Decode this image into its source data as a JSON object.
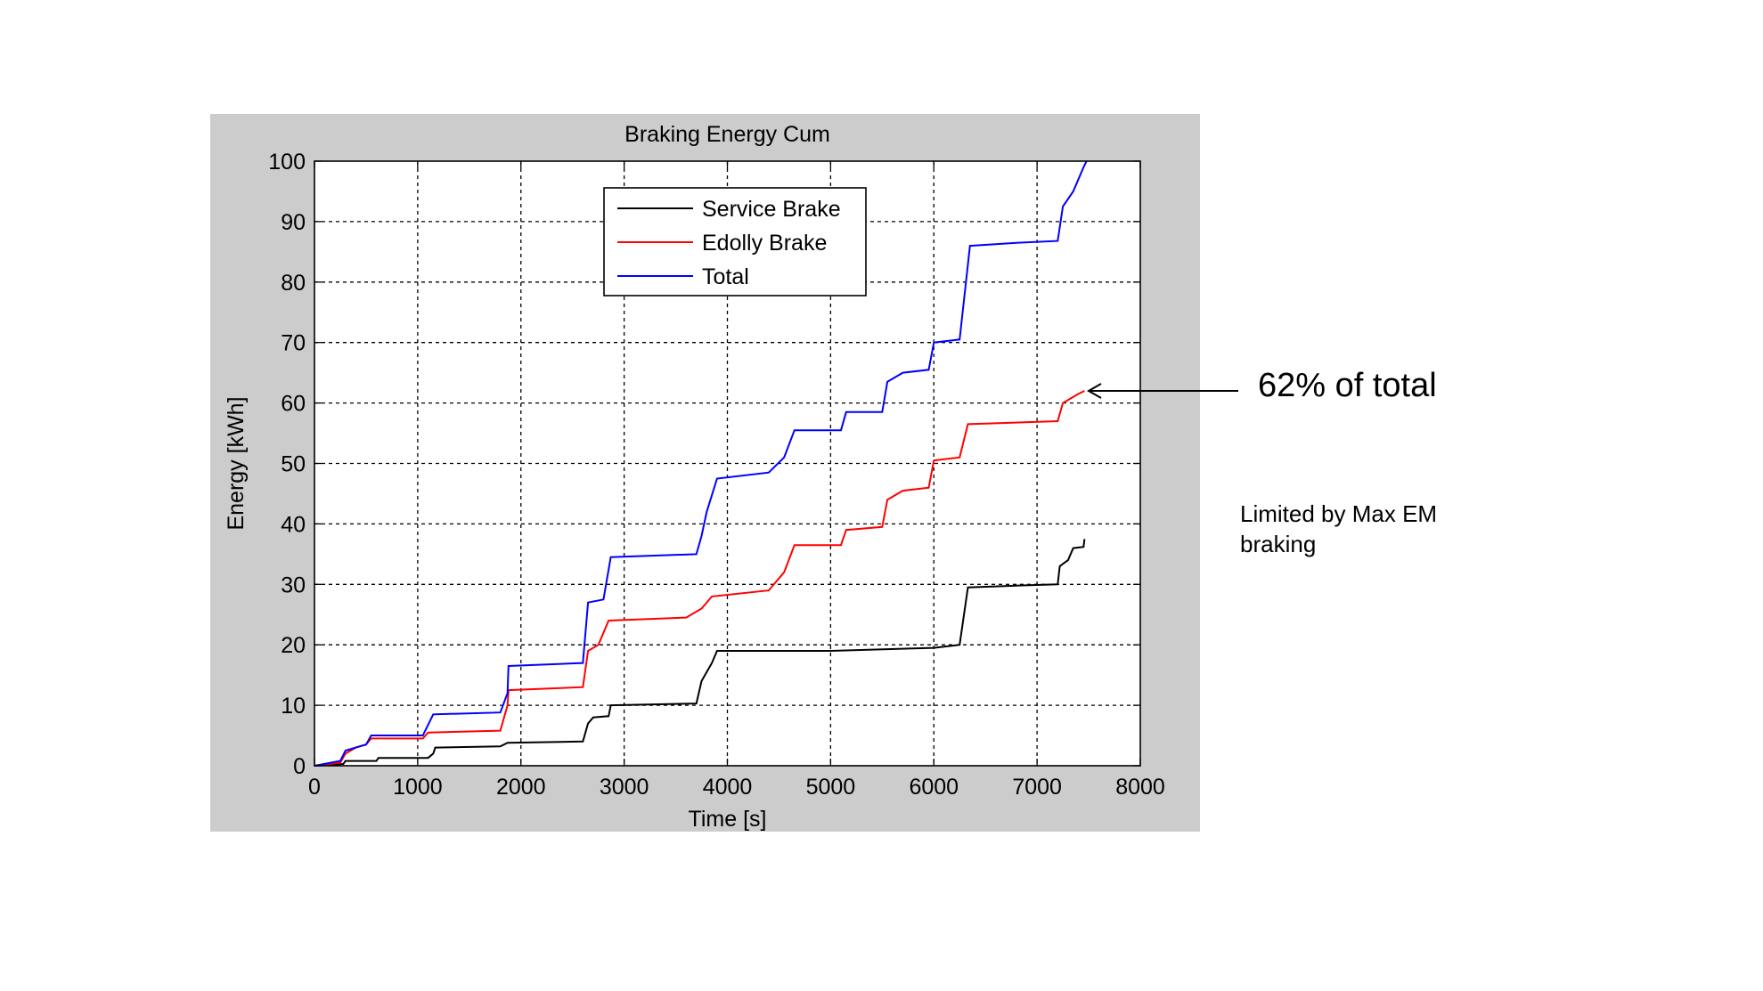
{
  "chart_data": {
    "type": "line",
    "title": "Braking Energy Cum",
    "xlabel": "Time [s]",
    "ylabel": "Energy [kWh]",
    "xlim": [
      0,
      8000
    ],
    "ylim": [
      0,
      100
    ],
    "xticks": [
      "0",
      "1000",
      "2000",
      "3000",
      "4000",
      "5000",
      "6000",
      "7000",
      "8000"
    ],
    "yticks": [
      "0",
      "10",
      "20",
      "30",
      "40",
      "50",
      "60",
      "70",
      "80",
      "90",
      "100"
    ],
    "grid": true,
    "legend_position": "top-center",
    "series": [
      {
        "name": "Service Brake",
        "color": "#000000",
        "points": [
          [
            0,
            0
          ],
          [
            280,
            0.3
          ],
          [
            300,
            0.8
          ],
          [
            600,
            0.8
          ],
          [
            620,
            1.3
          ],
          [
            1100,
            1.3
          ],
          [
            1150,
            2.0
          ],
          [
            1170,
            3.0
          ],
          [
            1800,
            3.2
          ],
          [
            1870,
            3.8
          ],
          [
            2600,
            4.0
          ],
          [
            2650,
            7.0
          ],
          [
            2700,
            8.0
          ],
          [
            2850,
            8.2
          ],
          [
            2870,
            10.0
          ],
          [
            3700,
            10.3
          ],
          [
            3750,
            14.0
          ],
          [
            3800,
            15.5
          ],
          [
            3850,
            17.0
          ],
          [
            3900,
            19.0
          ],
          [
            5000,
            19.0
          ],
          [
            6000,
            19.5
          ],
          [
            6250,
            20.0
          ],
          [
            6330,
            29.5
          ],
          [
            6800,
            29.8
          ],
          [
            7200,
            30.0
          ],
          [
            7220,
            33.0
          ],
          [
            7300,
            34.0
          ],
          [
            7350,
            36.0
          ],
          [
            7450,
            36.2
          ],
          [
            7460,
            37.5
          ]
        ]
      },
      {
        "name": "Edolly Brake",
        "color": "#ff0000",
        "points": [
          [
            0,
            0
          ],
          [
            250,
            0.5
          ],
          [
            300,
            2.0
          ],
          [
            400,
            3.0
          ],
          [
            500,
            3.5
          ],
          [
            550,
            4.5
          ],
          [
            1050,
            4.5
          ],
          [
            1100,
            5.5
          ],
          [
            1800,
            5.8
          ],
          [
            1870,
            10.0
          ],
          [
            1880,
            12.5
          ],
          [
            2600,
            13.0
          ],
          [
            2650,
            19.0
          ],
          [
            2750,
            20.0
          ],
          [
            2850,
            24.0
          ],
          [
            3600,
            24.5
          ],
          [
            3750,
            26.0
          ],
          [
            3850,
            28.0
          ],
          [
            4400,
            29.0
          ],
          [
            4550,
            32.0
          ],
          [
            4650,
            36.5
          ],
          [
            5100,
            36.5
          ],
          [
            5150,
            39.0
          ],
          [
            5500,
            39.5
          ],
          [
            5550,
            44.0
          ],
          [
            5700,
            45.5
          ],
          [
            5950,
            46.0
          ],
          [
            6000,
            50.5
          ],
          [
            6250,
            51.0
          ],
          [
            6330,
            56.5
          ],
          [
            7200,
            57.0
          ],
          [
            7250,
            60.0
          ],
          [
            7400,
            61.5
          ],
          [
            7460,
            62.0
          ]
        ]
      },
      {
        "name": "Total",
        "color": "#0000ff",
        "points": [
          [
            0,
            0
          ],
          [
            250,
            0.8
          ],
          [
            300,
            2.5
          ],
          [
            500,
            3.5
          ],
          [
            550,
            5.0
          ],
          [
            1050,
            5.0
          ],
          [
            1150,
            8.5
          ],
          [
            1800,
            8.8
          ],
          [
            1870,
            12.0
          ],
          [
            1880,
            16.5
          ],
          [
            2600,
            17.0
          ],
          [
            2650,
            27.0
          ],
          [
            2800,
            27.5
          ],
          [
            2870,
            34.5
          ],
          [
            3700,
            35.0
          ],
          [
            3750,
            38.0
          ],
          [
            3800,
            42.0
          ],
          [
            3900,
            47.5
          ],
          [
            4400,
            48.5
          ],
          [
            4550,
            51.0
          ],
          [
            4650,
            55.5
          ],
          [
            5100,
            55.5
          ],
          [
            5150,
            58.5
          ],
          [
            5500,
            58.5
          ],
          [
            5550,
            63.5
          ],
          [
            5700,
            65.0
          ],
          [
            5950,
            65.5
          ],
          [
            6000,
            70.0
          ],
          [
            6250,
            70.5
          ],
          [
            6350,
            86.0
          ],
          [
            6800,
            86.5
          ],
          [
            7200,
            86.8
          ],
          [
            7250,
            92.5
          ],
          [
            7350,
            95.0
          ],
          [
            7450,
            99.0
          ],
          [
            7480,
            100
          ]
        ]
      }
    ]
  },
  "annotations": {
    "percent_note": "62% of total",
    "limit_note": "Limited by Max EM braking"
  }
}
